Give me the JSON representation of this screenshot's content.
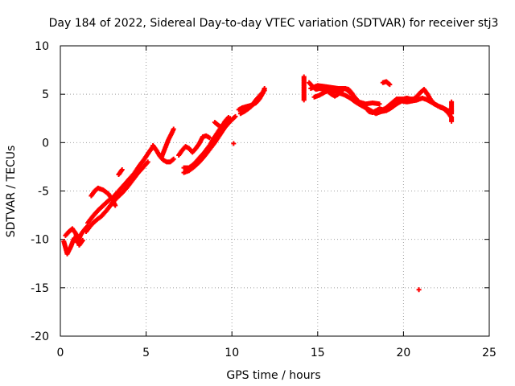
{
  "chart_data": {
    "type": "scatter",
    "title": "Day 184 of 2022, Sidereal Day-to-day VTEC variation (SDTVAR) for receiver stj3",
    "xlabel": "GPS time / hours",
    "ylabel": "SDTVAR / TECUs",
    "xlim": [
      0,
      25
    ],
    "ylim": [
      -20,
      10
    ],
    "xticks": [
      0,
      5,
      10,
      15,
      20,
      25
    ],
    "yticks": [
      10,
      5,
      0,
      -5,
      -10,
      -15,
      -20
    ],
    "grid": true,
    "marker": "+",
    "series_color": "#ff0000",
    "series": [
      {
        "name": "SDTVAR",
        "segments": [
          [
            [
              0.2,
              -10.2
            ],
            [
              0.4,
              -11.5
            ],
            [
              0.6,
              -10.8
            ],
            [
              0.8,
              -9.9
            ],
            [
              1.0,
              -10.3
            ],
            [
              1.2,
              -9.5
            ],
            [
              1.4,
              -9.0
            ],
            [
              1.6,
              -8.6
            ]
          ],
          [
            [
              0.3,
              -9.6
            ],
            [
              0.5,
              -9.2
            ],
            [
              0.7,
              -8.9
            ],
            [
              0.9,
              -9.4
            ],
            [
              1.1,
              -10.6
            ],
            [
              1.3,
              -10.1
            ]
          ],
          [
            [
              1.6,
              -8.3
            ],
            [
              1.9,
              -7.6
            ],
            [
              2.2,
              -7.0
            ],
            [
              2.5,
              -6.5
            ],
            [
              2.8,
              -6.0
            ],
            [
              3.1,
              -5.6
            ],
            [
              3.4,
              -5.0
            ],
            [
              3.7,
              -4.4
            ],
            [
              4.0,
              -3.8
            ],
            [
              4.3,
              -3.2
            ],
            [
              4.6,
              -2.4
            ],
            [
              4.9,
              -1.7
            ],
            [
              5.2,
              -0.9
            ],
            [
              5.4,
              -0.4
            ]
          ],
          [
            [
              1.5,
              -9.2
            ],
            [
              1.8,
              -8.5
            ],
            [
              2.1,
              -8.0
            ],
            [
              2.4,
              -7.6
            ],
            [
              2.7,
              -7.0
            ],
            [
              3.0,
              -6.3
            ],
            [
              3.3,
              -5.7
            ],
            [
              3.6,
              -5.2
            ],
            [
              3.9,
              -4.6
            ],
            [
              4.2,
              -3.9
            ],
            [
              4.5,
              -3.2
            ],
            [
              4.8,
              -2.6
            ],
            [
              5.1,
              -2.0
            ]
          ],
          [
            [
              1.8,
              -5.5
            ],
            [
              2.0,
              -5.0
            ],
            [
              2.2,
              -4.7
            ],
            [
              2.5,
              -4.9
            ],
            [
              2.8,
              -5.3
            ],
            [
              3.0,
              -5.8
            ],
            [
              3.2,
              -6.5
            ]
          ],
          [
            [
              3.4,
              -3.3
            ],
            [
              3.6,
              -2.8
            ]
          ],
          [
            [
              5.4,
              -0.3
            ],
            [
              5.6,
              -0.8
            ],
            [
              5.8,
              -1.4
            ],
            [
              6.0,
              -1.8
            ],
            [
              6.2,
              -2.0
            ],
            [
              6.4,
              -2.0
            ],
            [
              6.6,
              -1.7
            ]
          ],
          [
            [
              5.9,
              -1.5
            ],
            [
              6.1,
              -0.6
            ],
            [
              6.3,
              0.3
            ],
            [
              6.5,
              1.0
            ],
            [
              6.6,
              1.4
            ]
          ],
          [
            [
              6.9,
              -1.3
            ],
            [
              7.1,
              -0.8
            ],
            [
              7.3,
              -0.4
            ],
            [
              7.5,
              -0.6
            ],
            [
              7.7,
              -1.0
            ],
            [
              7.9,
              -0.6
            ],
            [
              8.1,
              -0.1
            ],
            [
              8.3,
              0.6
            ],
            [
              8.5,
              0.7
            ],
            [
              8.7,
              0.5
            ]
          ],
          [
            [
              7.2,
              -2.6
            ],
            [
              7.5,
              -2.6
            ],
            [
              7.8,
              -2.2
            ],
            [
              8.1,
              -1.6
            ],
            [
              8.4,
              -1.0
            ],
            [
              8.7,
              -0.3
            ],
            [
              9.0,
              0.6
            ],
            [
              9.3,
              1.4
            ],
            [
              9.6,
              2.0
            ],
            [
              9.9,
              2.5
            ]
          ],
          [
            [
              7.2,
              -3.1
            ],
            [
              7.5,
              -2.9
            ],
            [
              7.8,
              -2.5
            ],
            [
              8.1,
              -2.0
            ],
            [
              8.4,
              -1.4
            ],
            [
              8.7,
              -0.7
            ],
            [
              9.0,
              0.0
            ],
            [
              9.3,
              0.8
            ],
            [
              9.6,
              1.6
            ],
            [
              9.9,
              2.2
            ],
            [
              10.2,
              2.7
            ]
          ],
          [
            [
              9.0,
              2.1
            ],
            [
              9.2,
              1.8
            ],
            [
              9.4,
              1.6
            ],
            [
              9.6,
              2.2
            ],
            [
              9.8,
              2.6
            ]
          ],
          [
            [
              10.1,
              -0.1
            ]
          ],
          [
            [
              10.4,
              3.4
            ],
            [
              10.6,
              3.6
            ],
            [
              10.8,
              3.7
            ],
            [
              11.0,
              3.8
            ],
            [
              11.2,
              3.9
            ],
            [
              11.4,
              4.1
            ],
            [
              11.6,
              4.5
            ],
            [
              11.8,
              5.1
            ],
            [
              11.9,
              5.6
            ]
          ],
          [
            [
              10.5,
              3.0
            ],
            [
              10.8,
              3.3
            ],
            [
              11.1,
              3.7
            ],
            [
              11.4,
              4.4
            ],
            [
              11.7,
              5.0
            ],
            [
              11.9,
              5.4
            ]
          ],
          [
            [
              14.2,
              6.8
            ],
            [
              14.2,
              6.3
            ],
            [
              14.2,
              5.8
            ],
            [
              14.2,
              5.3
            ],
            [
              14.2,
              4.8
            ],
            [
              14.2,
              4.4
            ]
          ],
          [
            [
              14.5,
              6.2
            ],
            [
              14.7,
              5.8
            ],
            [
              14.9,
              5.5
            ],
            [
              15.1,
              5.6
            ],
            [
              15.4,
              5.5
            ],
            [
              15.6,
              5.3
            ],
            [
              15.8,
              5.0
            ],
            [
              16.0,
              4.8
            ],
            [
              16.2,
              5.0
            ],
            [
              16.4,
              5.4
            ],
            [
              16.6,
              5.6
            ],
            [
              16.8,
              5.5
            ],
            [
              17.0,
              5.1
            ],
            [
              17.2,
              4.5
            ],
            [
              17.4,
              4.0
            ],
            [
              17.6,
              3.8
            ],
            [
              17.8,
              3.6
            ],
            [
              18.0,
              3.2
            ],
            [
              18.2,
              3.1
            ],
            [
              18.4,
              3.3
            ],
            [
              18.6,
              3.5
            ],
            [
              18.8,
              3.4
            ],
            [
              19.0,
              3.6
            ],
            [
              19.2,
              3.9
            ],
            [
              19.4,
              4.2
            ],
            [
              19.6,
              4.5
            ],
            [
              19.8,
              4.5
            ],
            [
              20.0,
              4.5
            ],
            [
              20.2,
              4.6
            ],
            [
              20.4,
              4.5
            ],
            [
              20.6,
              4.5
            ],
            [
              20.8,
              4.8
            ],
            [
              21.0,
              5.2
            ],
            [
              21.2,
              5.5
            ],
            [
              21.4,
              5.0
            ],
            [
              21.6,
              4.4
            ],
            [
              21.8,
              4.0
            ],
            [
              22.0,
              3.8
            ],
            [
              22.2,
              3.6
            ],
            [
              22.4,
              3.5
            ],
            [
              22.6,
              3.3
            ],
            [
              22.8,
              3.3
            ]
          ],
          [
            [
              14.8,
              4.7
            ],
            [
              15.1,
              4.9
            ],
            [
              15.4,
              5.2
            ],
            [
              15.7,
              5.4
            ],
            [
              16.0,
              5.3
            ],
            [
              16.3,
              5.1
            ],
            [
              16.6,
              4.9
            ],
            [
              16.9,
              4.6
            ],
            [
              17.2,
              4.2
            ],
            [
              17.5,
              3.9
            ],
            [
              17.8,
              3.6
            ],
            [
              18.1,
              3.3
            ],
            [
              18.4,
              3.0
            ],
            [
              18.7,
              3.2
            ],
            [
              19.0,
              3.3
            ],
            [
              19.3,
              3.6
            ],
            [
              19.6,
              4.0
            ],
            [
              19.9,
              4.3
            ],
            [
              20.2,
              4.2
            ],
            [
              20.5,
              4.3
            ],
            [
              20.8,
              4.4
            ],
            [
              21.1,
              4.6
            ],
            [
              21.4,
              4.4
            ],
            [
              21.7,
              4.1
            ],
            [
              22.0,
              3.8
            ],
            [
              22.3,
              3.6
            ],
            [
              22.6,
              3.1
            ],
            [
              22.8,
              2.6
            ],
            [
              22.8,
              2.2
            ]
          ],
          [
            [
              14.6,
              5.6
            ],
            [
              15.0,
              5.9
            ],
            [
              15.4,
              5.8
            ],
            [
              15.8,
              5.7
            ],
            [
              16.2,
              5.6
            ],
            [
              16.6,
              5.6
            ],
            [
              17.0,
              5.0
            ],
            [
              17.4,
              4.2
            ],
            [
              17.8,
              4.0
            ],
            [
              18.2,
              4.1
            ],
            [
              18.6,
              4.0
            ]
          ],
          [
            [
              18.8,
              6.2
            ],
            [
              19.0,
              6.3
            ],
            [
              19.2,
              6.0
            ]
          ],
          [
            [
              22.8,
              4.2
            ],
            [
              22.8,
              3.8
            ],
            [
              22.8,
              3.0
            ]
          ],
          [
            [
              20.9,
              -15.2
            ]
          ]
        ]
      }
    ]
  }
}
